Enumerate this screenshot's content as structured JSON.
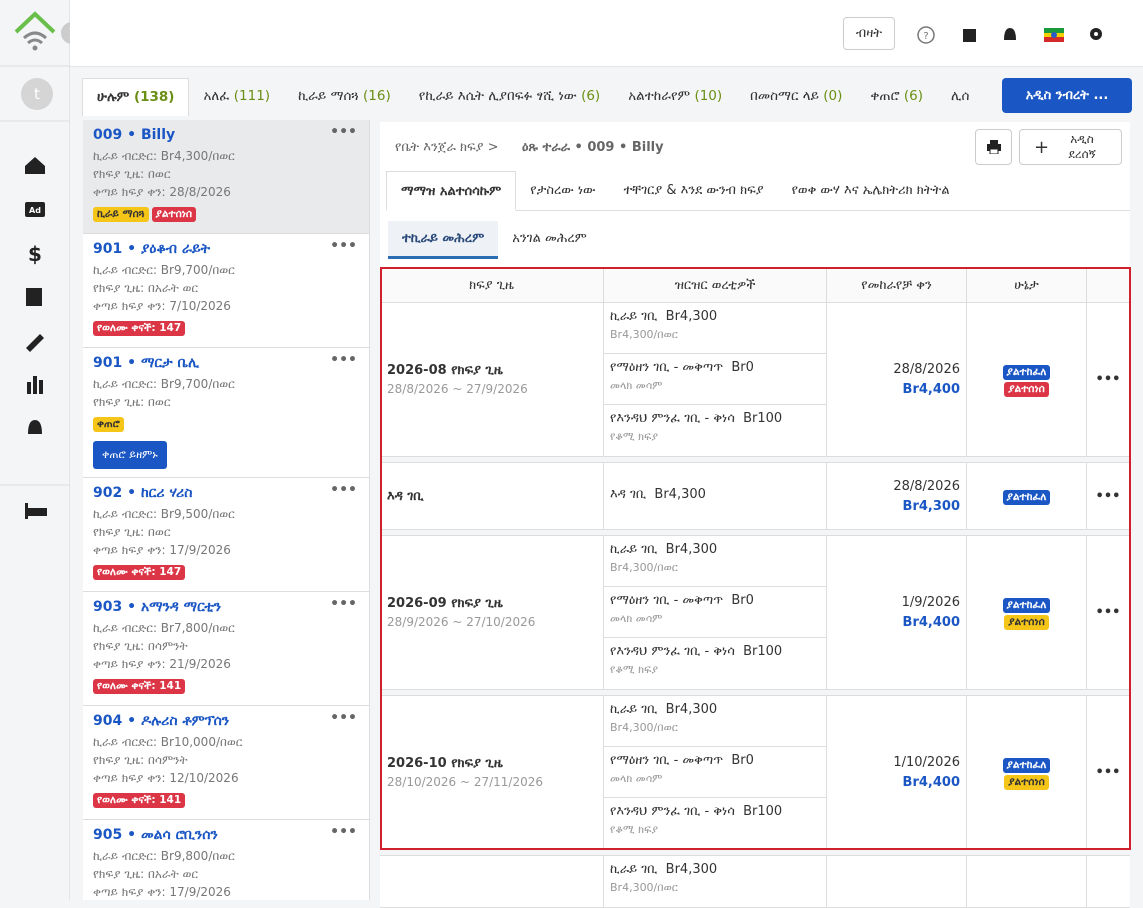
{
  "header": {
    "count_button": "ብዛት"
  },
  "tabs": [
    {
      "label": "ሁሉም",
      "count": "(138)"
    },
    {
      "label": "አለፈ",
      "count": "(111)"
    },
    {
      "label": "ኪራይ ማሰጓ",
      "count": "(16)"
    },
    {
      "label": "የኪራይ እሴት ሊያበፍፉ ፃሺ ነው",
      "count": "(6)"
    },
    {
      "label": "አልተከራየም",
      "count": "(10)"
    },
    {
      "label": "በመስማር ላይ",
      "count": "(0)"
    },
    {
      "label": "ቀጠሮ",
      "count": "(6)"
    },
    {
      "label": "ሊሰ",
      "count": ""
    }
  ],
  "new_button": "አዲስ ንብረት ...",
  "tenants": [
    {
      "unit": "009",
      "name": "Billy",
      "lines": [
        "ኪራይ ብርድር: Br4,300/በወር",
        "የክፍያ ጊዜ: በወር",
        "ቀጣይ ክፍያ ቀን: 28/8/2026"
      ],
      "badges": [
        {
          "text": "ኪራይ ማሰጓ",
          "color": "#f5c518"
        },
        {
          "text": "ያልተሰነሰ",
          "color": "#dc3545"
        }
      ]
    },
    {
      "unit": "901",
      "name": "ያዕቆብ ራይት",
      "lines": [
        "ኪራይ ብርድር: Br9,700/በወር",
        "የክፍያ ጊዜ: በአራት ወር",
        "ቀጣይ ክፍያ ቀን: 7/10/2026"
      ],
      "badges": [
        {
          "text": "የወለሙ ቀናች: 147",
          "color": "#dc3545"
        }
      ]
    },
    {
      "unit": "901",
      "name": "ማርታ ቤሊ",
      "lines": [
        "ኪራይ ብርድር: Br9,700/በወር",
        "የክፍያ ጊዜ: በወር"
      ],
      "badges": [
        {
          "text": "ቀጠሮ",
          "color": "#f5c518"
        }
      ],
      "action": "ቀጠሮ ይዘምኑ"
    },
    {
      "unit": "902",
      "name": "ከርሪ ሃሪስ",
      "lines": [
        "ኪራይ ብርድር: Br9,500/በወር",
        "የክፍያ ጊዜ: በወር",
        "ቀጣይ ክፍያ ቀን: 17/9/2026"
      ],
      "badges": [
        {
          "text": "የወለሙ ቀናች: 147",
          "color": "#dc3545"
        }
      ]
    },
    {
      "unit": "903",
      "name": "አማንዳ ማርቲን",
      "lines": [
        "ኪራይ ብርድር: Br7,800/በወር",
        "የክፍያ ጊዜ: በሳምንት",
        "ቀጣይ ክፍያ ቀን: 21/9/2026"
      ],
      "badges": [
        {
          "text": "የወለሙ ቀናች: 141",
          "color": "#dc3545"
        }
      ]
    },
    {
      "unit": "904",
      "name": "ዶሉሪስ ቶምፕሰን",
      "lines": [
        "ኪራይ ብርድር: Br10,000/በወር",
        "የክፍያ ጊዜ: በሳምንት",
        "ቀጣይ ክፍያ ቀን: 12/10/2026"
      ],
      "badges": [
        {
          "text": "የወለሙ ቀናች: 141",
          "color": "#dc3545"
        }
      ]
    },
    {
      "unit": "905",
      "name": "መልሳ ሮቢንሰን",
      "lines": [
        "ኪራይ ብርድር: Br9,800/በወር",
        "የክፍያ ጊዜ: በአራት ወር",
        "ቀጣይ ክፍያ ቀን: 17/9/2026"
      ],
      "badges": []
    }
  ],
  "breadcrumb": {
    "parent": "የቤት እንጀራ ክፍያ >",
    "current": "ዕጹ ተራራ • 009 • Billy"
  },
  "add_button": "አዲስ ደረሰኝ",
  "subtabs": [
    "ማማዝ አልተሰሳኩም",
    "የታስረው ነው",
    "ተቸገርያ & እንደ ውንብ ክፍያ",
    "የወቀ ውሃ እና ኤሌክትሪክ ክትትል"
  ],
  "inner_tabs": [
    "ተኪራይ መሕረም",
    "አንገል መሕረም"
  ],
  "table": {
    "columns": [
      "ክፍያ ጊዜ",
      "ዝርዝር ወረቲዎች",
      "የመከራየቻ ቀን",
      "ሁኔታ"
    ],
    "rows": [
      {
        "period": "2026-08 የክፍያ ጊዜ",
        "range": "28/8/2026 ~ 27/9/2026",
        "items": [
          {
            "name": "ኪራይ ገቢ",
            "amount": "Br4,300",
            "note": "Br4,300/በወር"
          },
          {
            "name": "የማዕዘን ገቢ - መቅጣጥ",
            "amount": "Br0",
            "note": "መላክ መሳም"
          },
          {
            "name": "የእንዳህ ምንፈ ገቢ - ቅነሳ",
            "amount": "Br100",
            "note": "የቆሚ ክፍያ"
          }
        ],
        "date": "28/8/2026",
        "total": "Br4,400",
        "statuses": [
          {
            "text": "ያልተከፈለ",
            "color": "#1a56c4"
          },
          {
            "text": "ያልተሰነሰ",
            "color": "#dc3545"
          }
        ]
      },
      {
        "period": "እዳ ገቢ",
        "items": [
          {
            "name": "እዳ ገቢ",
            "amount": "Br4,300"
          }
        ],
        "date": "28/8/2026",
        "total": "Br4,300",
        "statuses": [
          {
            "text": "ያልተከፈለ",
            "color": "#1a56c4"
          }
        ]
      },
      {
        "period": "2026-09 የክፍያ ጊዜ",
        "range": "28/9/2026 ~ 27/10/2026",
        "items": [
          {
            "name": "ኪራይ ገቢ",
            "amount": "Br4,300",
            "note": "Br4,300/በወር"
          },
          {
            "name": "የማዕዘን ገቢ - መቅጣጥ",
            "amount": "Br0",
            "note": "መላክ መሳም"
          },
          {
            "name": "የእንዳህ ምንፈ ገቢ - ቅነሳ",
            "amount": "Br100",
            "note": "የቆሚ ክፍያ"
          }
        ],
        "date": "1/9/2026",
        "total": "Br4,400",
        "statuses": [
          {
            "text": "ያልተከፈለ",
            "color": "#1a56c4"
          },
          {
            "text": "ያልተሰነሰ",
            "color": "#f5c518"
          }
        ]
      },
      {
        "period": "2026-10 የክፍያ ጊዜ",
        "range": "28/10/2026 ~ 27/11/2026",
        "items": [
          {
            "name": "ኪራይ ገቢ",
            "amount": "Br4,300",
            "note": "Br4,300/በወር"
          },
          {
            "name": "የማዕዘን ገቢ - መቅጣጥ",
            "amount": "Br0",
            "note": "መላክ መሳም"
          },
          {
            "name": "የእንዳህ ምንፈ ገቢ - ቅነሳ",
            "amount": "Br100",
            "note": "የቆሚ ክፍያ"
          }
        ],
        "date": "1/10/2026",
        "total": "Br4,400",
        "statuses": [
          {
            "text": "ያልተከፈለ",
            "color": "#1a56c4"
          },
          {
            "text": "ያልተሰነሰ",
            "color": "#f5c518"
          }
        ]
      },
      {
        "items": [
          {
            "name": "ኪራይ ገቢ",
            "amount": "Br4,300",
            "note": "Br4,300/በወር"
          }
        ]
      }
    ]
  }
}
